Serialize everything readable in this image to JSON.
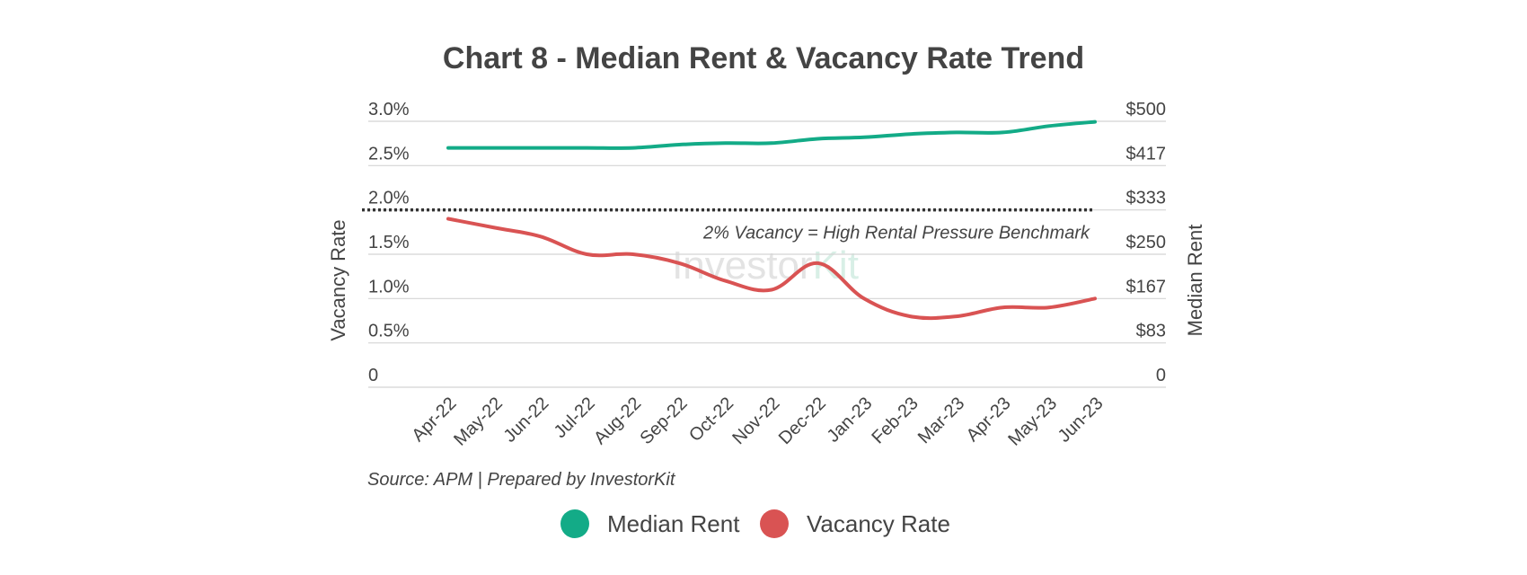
{
  "chart_data": {
    "type": "line",
    "title": "Chart 8 - Median Rent & Vacancy Rate Trend",
    "categories": [
      "Apr-22",
      "May-22",
      "Jun-22",
      "Jul-22",
      "Aug-22",
      "Sep-22",
      "Oct-22",
      "Nov-22",
      "Dec-22",
      "Jan-23",
      "Feb-23",
      "Mar-23",
      "Apr-23",
      "May-23",
      "Jun-23"
    ],
    "series": [
      {
        "name": "Median Rent",
        "axis": "right",
        "color": "#13ab87",
        "values": [
          450,
          450,
          450,
          450,
          450,
          456,
          459,
          459,
          467,
          470,
          476,
          479,
          479,
          491,
          499
        ]
      },
      {
        "name": "Vacancy Rate",
        "axis": "left",
        "color": "#d95353",
        "values": [
          1.9,
          1.8,
          1.7,
          1.5,
          1.5,
          1.4,
          1.2,
          1.1,
          1.4,
          1.0,
          0.8,
          0.8,
          0.9,
          0.9,
          1.0
        ]
      }
    ],
    "ylabel": "Vacancy Rate",
    "y2label": "Median Rent",
    "ylim": [
      0,
      3.0
    ],
    "y2lim": [
      0,
      500
    ],
    "yticks": [
      "0",
      "0.5%",
      "1.0%",
      "1.5%",
      "2.0%",
      "2.5%",
      "3.0%"
    ],
    "y2ticks": [
      "0",
      "$83",
      "$167",
      "$250",
      "$333",
      "$417",
      "$500"
    ],
    "benchmark": {
      "value": 2.0,
      "label": "2% Vacancy = High Rental Pressure Benchmark",
      "color": "#333333"
    },
    "source": "Source: APM | Prepared by InvestorKit",
    "watermark": {
      "part1": "Investor",
      "part2": "Kit"
    },
    "grid": true,
    "legend_position": "bottom"
  }
}
